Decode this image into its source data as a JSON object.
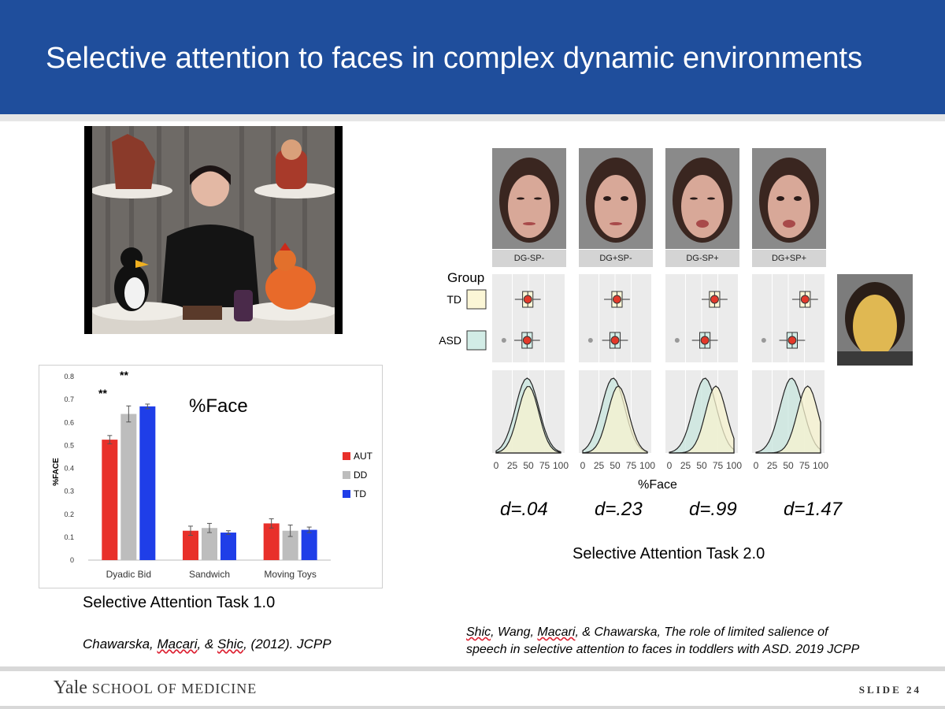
{
  "slide": {
    "title": "Selective attention to faces in complex dynamic environments",
    "left_caption": "Selective Attention Task 1.0",
    "right_caption": "Selective Attention Task 2.0",
    "left_citation": {
      "part1": "Chawarska, ",
      "part2": "Macari",
      "part3": ", & ",
      "part4": "Shic",
      "part5": ", (2012). JCPP"
    },
    "right_citation": {
      "part1": "Shic",
      "part2": ", Wang, ",
      "part3": "Macari",
      "part4": ", & Chawarska, The role of limited salience of",
      "line2": "speech in selective attention to faces in toddlers with ASD. 2019 JCPP"
    },
    "footer_brand_yale": "Yale",
    "footer_brand_rest": "SCHOOL OF MEDICINE",
    "slide_number": "SLIDE 24"
  },
  "chart_data": [
    {
      "type": "bar",
      "title": "%Face",
      "ylabel": "%FACE",
      "ylim": [
        0,
        0.8
      ],
      "yticks": [
        "0",
        "0.1",
        "0.2",
        "0.3",
        "0.4",
        "0.5",
        "0.6",
        "0.7",
        "0.8"
      ],
      "categories": [
        "Dyadic Bid",
        "Sandwich",
        "Moving Toys"
      ],
      "series": [
        {
          "name": "AUT",
          "color": "#e8302a",
          "values": [
            0.525,
            0.128,
            0.16
          ],
          "errors": [
            0.018,
            0.02,
            0.02
          ]
        },
        {
          "name": "DD",
          "color": "#bdbdbd",
          "values": [
            0.637,
            0.14,
            0.128
          ],
          "errors": [
            0.035,
            0.02,
            0.025
          ]
        },
        {
          "name": "TD",
          "color": "#1f3ee8",
          "values": [
            0.67,
            0.12,
            0.132
          ],
          "errors": [
            0.01,
            0.008,
            0.012
          ]
        }
      ],
      "annotations": [
        "**",
        "**"
      ],
      "legend": "right"
    },
    {
      "type": "boxplot",
      "xlabel": "%Face",
      "legend_title": "Group",
      "groups": [
        "TD",
        "ASD"
      ],
      "group_colors": {
        "TD": "#fbf6d6",
        "ASD": "#d2ece6"
      },
      "conditions": [
        "DG-SP-",
        "DG+SP-",
        "DG-SP+",
        "DG+SP+"
      ],
      "x_ticks": [
        "0",
        "25",
        "50",
        "75",
        "100"
      ],
      "medians": {
        "TD": [
          49,
          53,
          70,
          76
        ],
        "ASD": [
          48,
          50,
          55,
          56
        ]
      },
      "effect_sizes": [
        "d=.04",
        "d=.23",
        "d=.99",
        "d=1.47"
      ]
    }
  ]
}
